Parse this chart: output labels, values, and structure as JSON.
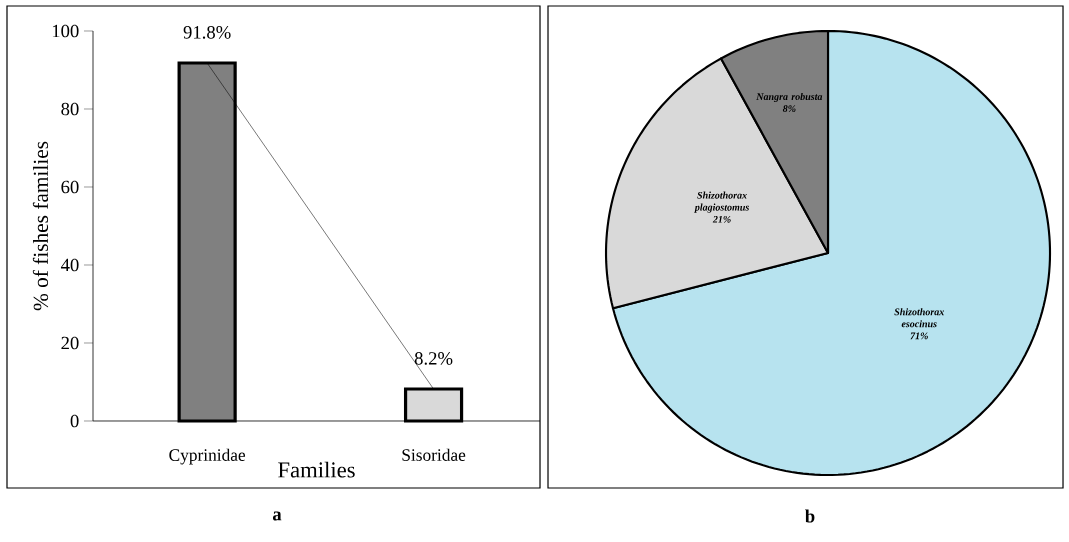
{
  "chart_data": [
    {
      "type": "bar",
      "xlabel": "Families",
      "ylabel": "% of fishes families",
      "categories": [
        "Cyprinidae",
        "Sisoridae"
      ],
      "series": [
        {
          "type": "bar",
          "colors": [
            "#808080",
            "#d9d9d9"
          ],
          "values": [
            91.8,
            8.2
          ],
          "value_labels": [
            "91.8%",
            "8.2%"
          ]
        },
        {
          "type": "line",
          "color": "#000000",
          "values": [
            91.8,
            8.2
          ]
        }
      ],
      "ylim": [
        0,
        100
      ],
      "yticks": [
        0,
        20,
        40,
        60,
        80,
        100
      ],
      "annotations": [
        "a"
      ]
    },
    {
      "type": "pie",
      "categories": [
        "Shizothorax esocinus",
        "Shizothorax plagiostomus",
        "Nangra robusta"
      ],
      "values": [
        71,
        21,
        8
      ],
      "colors": [
        "#b7e3ef",
        "#d9d9d9",
        "#808080"
      ],
      "value_labels": [
        "71%",
        "21%",
        "8%"
      ],
      "annotations": [
        "b"
      ]
    }
  ]
}
